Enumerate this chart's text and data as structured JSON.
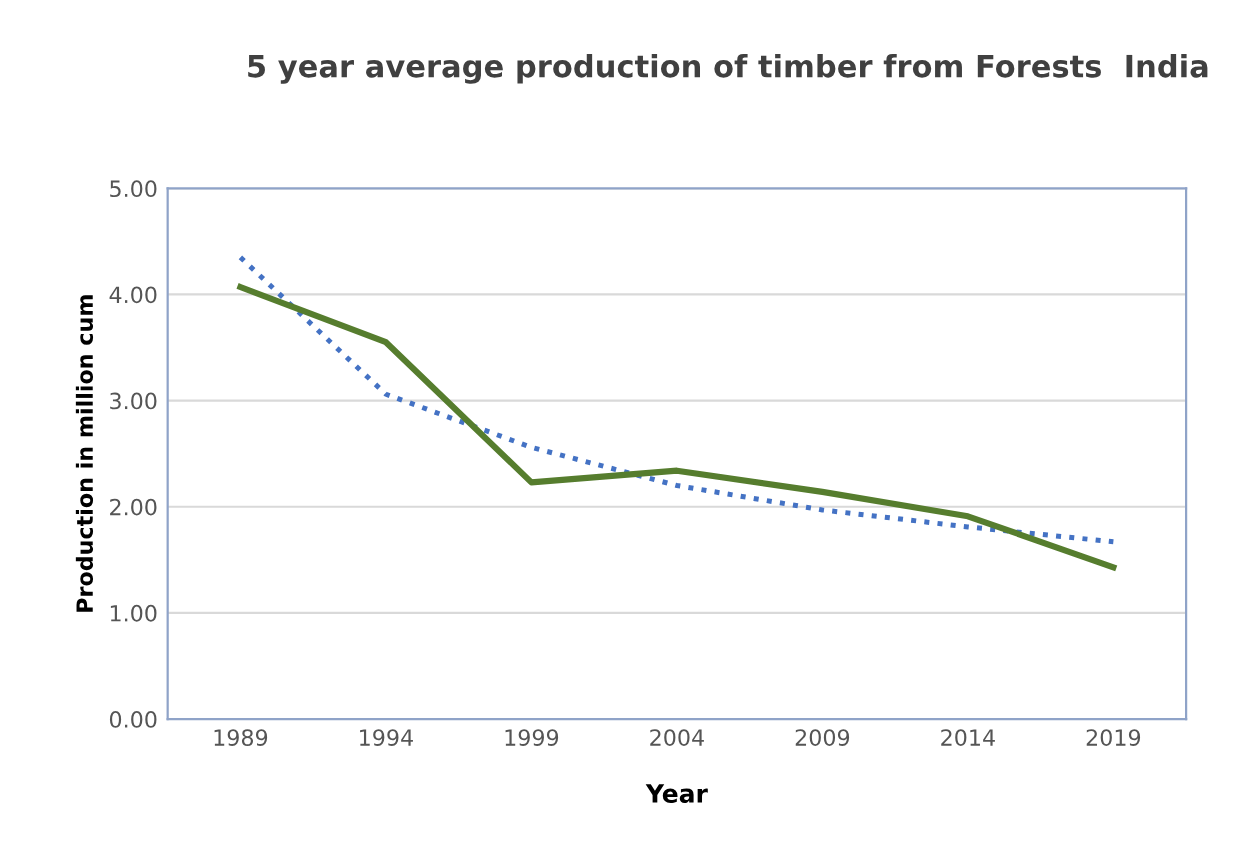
{
  "chart_data": {
    "type": "line",
    "title": "5 year average production of timber from Forests  India",
    "xlabel": "Year",
    "ylabel": "Production in million cum",
    "categories": [
      "1989",
      "1994",
      "1999",
      "2004",
      "2009",
      "2014",
      "2019"
    ],
    "series": [
      {
        "color": "#567d2e",
        "values": [
          4.07,
          3.55,
          2.23,
          2.34,
          2.14,
          1.91,
          1.43
        ],
        "line_style": "solid"
      },
      {
        "color": "#4472c4",
        "values": [
          4.35,
          3.06,
          2.56,
          2.2,
          1.97,
          1.81,
          1.67
        ],
        "line_style": "dotted"
      }
    ],
    "ylim": [
      0,
      5
    ],
    "yticks": [
      {
        "value": 0,
        "label": "0.00"
      },
      {
        "value": 1,
        "label": "1.00"
      },
      {
        "value": 2,
        "label": "2.00"
      },
      {
        "value": 3,
        "label": "3.00"
      },
      {
        "value": 4,
        "label": "4.00"
      },
      {
        "value": 5,
        "label": "5.00"
      }
    ],
    "grid": "y",
    "legend": false,
    "marker": "none"
  }
}
